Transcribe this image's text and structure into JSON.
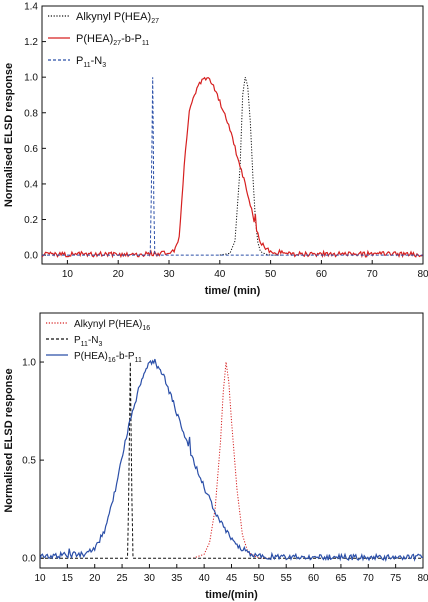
{
  "chart_data": [
    {
      "type": "line",
      "xlabel": "time/ (min)",
      "ylabel": "Normalised ELSD response",
      "xlim": [
        5,
        80
      ],
      "ylim": [
        -0.05,
        1.4
      ],
      "x_ticks": [
        "10",
        "20",
        "30",
        "40",
        "50",
        "60",
        "70",
        "80"
      ],
      "y_ticks": [
        "0.0",
        "0.2",
        "0.4",
        "0.6",
        "0.8",
        "1.0",
        "1.2",
        "1.4"
      ],
      "legend": {
        "position": "top-left",
        "items": [
          {
            "base": "Alkynyl P(HEA)",
            "sub": "27",
            "tail": ""
          },
          {
            "base": "P(HEA)",
            "sub": "27",
            "tail": "-b-P",
            "sub2": "11"
          },
          {
            "base": "P",
            "sub": "11",
            "tail": "-N",
            "sub2": "3"
          }
        ]
      },
      "series": [
        {
          "name": "Alkynyl P(HEA)27",
          "color": "#111111",
          "style": "dotted",
          "x": [
            40,
            42,
            43,
            44,
            44.5,
            45,
            45.5,
            46,
            46.5,
            47,
            47.5,
            48,
            49,
            50,
            52
          ],
          "y": [
            0,
            0.01,
            0.08,
            0.5,
            0.9,
            1.0,
            0.95,
            0.75,
            0.45,
            0.2,
            0.07,
            0.02,
            0.005,
            0,
            0
          ]
        },
        {
          "name": "P(HEA)27-b-P11",
          "color": "#d62020",
          "style": "solid",
          "x": [
            5,
            25,
            30,
            31,
            32,
            33,
            34,
            35,
            36,
            37,
            38,
            39,
            40,
            41,
            42,
            43,
            44,
            45,
            46,
            47,
            48,
            49,
            50,
            52,
            55,
            80
          ],
          "y": [
            0.005,
            0.005,
            0.01,
            0.02,
            0.1,
            0.5,
            0.8,
            0.9,
            0.96,
            1.0,
            0.98,
            0.93,
            0.86,
            0.78,
            0.7,
            0.6,
            0.5,
            0.4,
            0.28,
            0.16,
            0.08,
            0.04,
            0.02,
            0.01,
            0.005,
            0.005
          ]
        },
        {
          "name": "P11-N3",
          "color": "#2b4fa8",
          "style": "dashed",
          "x": [
            5,
            26.3,
            26.5,
            26.8,
            27.0,
            27.2,
            80
          ],
          "y": [
            0,
            0,
            0.3,
            1.0,
            0.3,
            0,
            0
          ]
        }
      ]
    },
    {
      "type": "line",
      "xlabel": "time/(min)",
      "ylabel": "Normalised ELSD response",
      "xlim": [
        10,
        80
      ],
      "ylim": [
        -0.05,
        1.25
      ],
      "x_ticks": [
        "10",
        "15",
        "20",
        "25",
        "30",
        "35",
        "40",
        "45",
        "50",
        "55",
        "60",
        "65",
        "70",
        "75",
        "80"
      ],
      "y_ticks": [
        "0.0",
        "0.5",
        "1.0"
      ],
      "legend": {
        "position": "top-left",
        "items": [
          {
            "base": "Alkynyl P(HEA)",
            "sub": "16",
            "tail": ""
          },
          {
            "base": "P",
            "sub": "11",
            "tail": "-N",
            "sub2": "3"
          },
          {
            "base": "P(HEA)",
            "sub": "16",
            "tail": "-b-P",
            "sub2": "11"
          }
        ]
      },
      "series": [
        {
          "name": "Alkynyl P(HEA)16",
          "color": "#d62020",
          "style": "dotted",
          "x": [
            38,
            40,
            41,
            42,
            43,
            43.5,
            44,
            44.5,
            45,
            46,
            47,
            48,
            50,
            52
          ],
          "y": [
            0,
            0.02,
            0.08,
            0.25,
            0.6,
            0.85,
            1.0,
            0.9,
            0.7,
            0.35,
            0.12,
            0.03,
            0,
            0
          ]
        },
        {
          "name": "P11-N3",
          "color": "#111111",
          "style": "dashed",
          "x": [
            10,
            26.0,
            26.2,
            26.5,
            26.8,
            27.0,
            80
          ],
          "y": [
            0,
            0,
            0.3,
            1.0,
            0.3,
            0,
            0
          ]
        },
        {
          "name": "P(HEA)16-b-P11",
          "color": "#2b4fa8",
          "style": "solid",
          "x": [
            10,
            18,
            20,
            22,
            24,
            26,
            28,
            29,
            30,
            31,
            32,
            33,
            34,
            35,
            36,
            38,
            40,
            42,
            44,
            46,
            48,
            50,
            55,
            80
          ],
          "y": [
            0.01,
            0.02,
            0.05,
            0.15,
            0.38,
            0.65,
            0.86,
            0.95,
            1.0,
            1.0,
            0.96,
            0.9,
            0.82,
            0.74,
            0.65,
            0.5,
            0.36,
            0.24,
            0.14,
            0.07,
            0.03,
            0.01,
            0.005,
            0.005
          ]
        }
      ]
    }
  ]
}
